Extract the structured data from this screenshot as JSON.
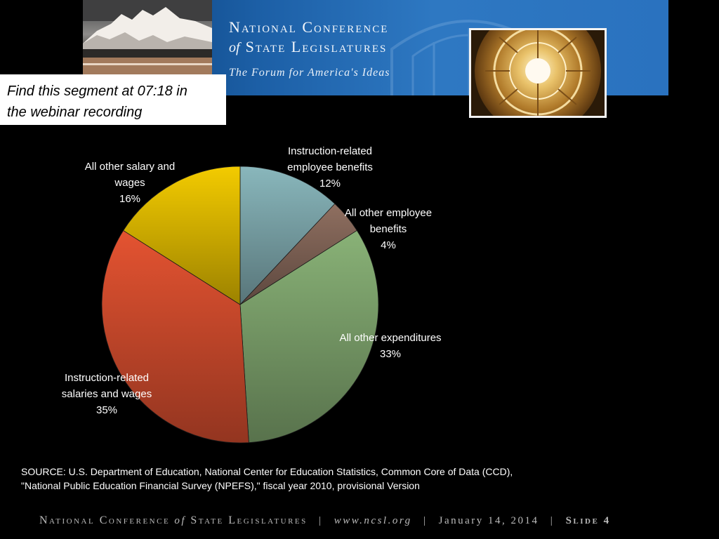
{
  "header": {
    "org_line1": "National Conference",
    "org_of": "of",
    "org_line2": "State Legislatures",
    "tagline": "The Forum for America's Ideas"
  },
  "note": {
    "line1": "Find this segment at 07:18 in",
    "line2": "the webinar recording"
  },
  "chart_data": {
    "type": "pie",
    "title": "",
    "slices": [
      {
        "label_lines": [
          "Instruction-related",
          "employee benefits"
        ],
        "value": 12,
        "value_label": "12%",
        "color": "#7aa3a8"
      },
      {
        "label_lines": [
          "All other employee",
          "benefits"
        ],
        "value": 4,
        "value_label": "4%",
        "color": "#806356"
      },
      {
        "label_lines": [
          "All other expenditures"
        ],
        "value": 33,
        "value_label": "33%",
        "color": "#7a9f6a"
      },
      {
        "label_lines": [
          "Instruction-related",
          "salaries and wages"
        ],
        "value": 35,
        "value_label": "35%",
        "color": "#cc4a2c"
      },
      {
        "label_lines": [
          "All other salary and",
          "wages"
        ],
        "value": 16,
        "value_label": "16%",
        "color": "#d9b500"
      }
    ]
  },
  "source": {
    "line1": "SOURCE: U.S. Department of Education, National Center for Education Statistics, Common Core of Data (CCD),",
    "line2": "\"National Public Education Financial Survey (NPEFS),\" fiscal year 2010, provisional Version"
  },
  "footer": {
    "org_a": "National Conference",
    "org_of": "of",
    "org_b": "State Legislatures",
    "separator": "|",
    "website": "www.ncsl.org",
    "date": "January 14, 2014",
    "slide_label": "Slide",
    "slide_number": "4"
  }
}
